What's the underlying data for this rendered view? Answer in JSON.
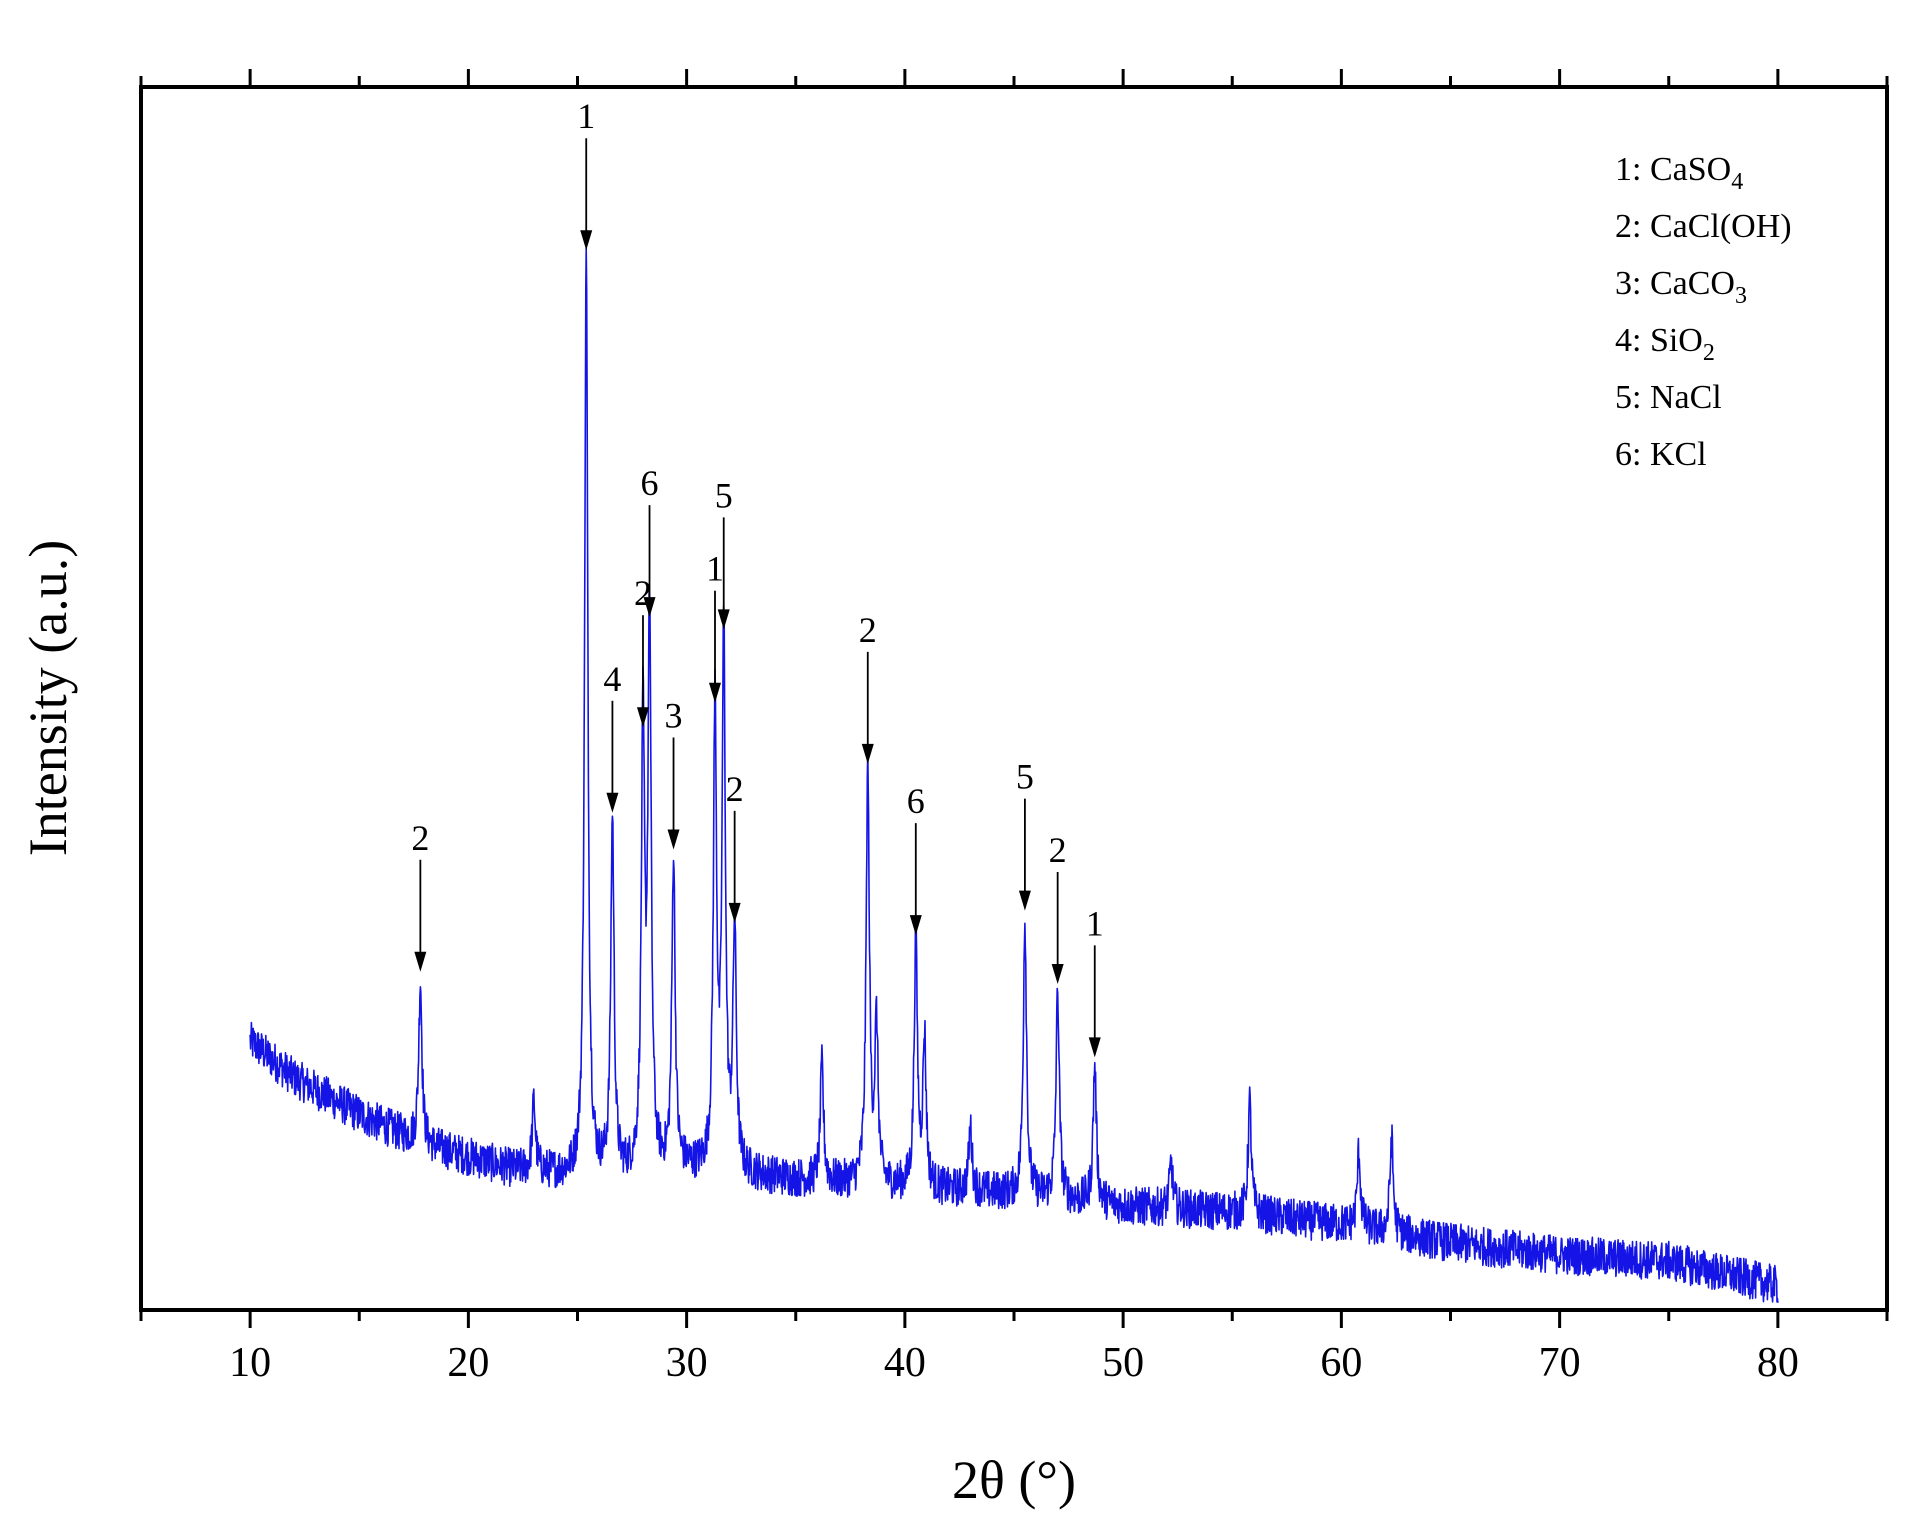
{
  "chart_data": {
    "type": "line",
    "title": "",
    "xlabel": "2θ (°)",
    "ylabel": "Intensity (a.u.)",
    "xlim": [
      5,
      85
    ],
    "ylim": [
      0,
      100
    ],
    "x_ticks": [
      10,
      20,
      30,
      40,
      50,
      60,
      70,
      80
    ],
    "x_tick_labels": [
      "10",
      "20",
      "30",
      "40",
      "50",
      "60",
      "70",
      "80"
    ],
    "y_ticks_shown": false,
    "grid": false,
    "line_color": "#1414e6",
    "x_start": 10,
    "x_end": 80,
    "baseline": [
      [
        10,
        22
      ],
      [
        12,
        19
      ],
      [
        15,
        16
      ],
      [
        18,
        13.5
      ],
      [
        20,
        12.5
      ],
      [
        22,
        11.5
      ],
      [
        25,
        11
      ],
      [
        27,
        11
      ],
      [
        30,
        11.5
      ],
      [
        33,
        11
      ],
      [
        36,
        10.5
      ],
      [
        40,
        10
      ],
      [
        45,
        9.5
      ],
      [
        50,
        8.5
      ],
      [
        55,
        8
      ],
      [
        60,
        7
      ],
      [
        65,
        5.5
      ],
      [
        70,
        4.5
      ],
      [
        75,
        4
      ],
      [
        80,
        2
      ]
    ],
    "peaks": [
      {
        "x": 17.8,
        "y": 27,
        "phase": "2"
      },
      {
        "x": 23.0,
        "y": 17,
        "phase": ""
      },
      {
        "x": 25.4,
        "y": 86,
        "phase": "1"
      },
      {
        "x": 26.6,
        "y": 40,
        "phase": "4"
      },
      {
        "x": 28.0,
        "y": 47,
        "phase": "2"
      },
      {
        "x": 28.3,
        "y": 56,
        "phase": "6"
      },
      {
        "x": 29.4,
        "y": 37,
        "phase": "3"
      },
      {
        "x": 31.3,
        "y": 49,
        "phase": "1"
      },
      {
        "x": 31.7,
        "y": 55,
        "phase": "5"
      },
      {
        "x": 32.2,
        "y": 31,
        "phase": "2"
      },
      {
        "x": 36.2,
        "y": 20,
        "phase": ""
      },
      {
        "x": 38.3,
        "y": 44,
        "phase": "2"
      },
      {
        "x": 38.7,
        "y": 23,
        "phase": ""
      },
      {
        "x": 40.5,
        "y": 30,
        "phase": "6"
      },
      {
        "x": 40.9,
        "y": 22,
        "phase": ""
      },
      {
        "x": 43.0,
        "y": 15,
        "phase": ""
      },
      {
        "x": 45.5,
        "y": 32,
        "phase": "5"
      },
      {
        "x": 47.0,
        "y": 26,
        "phase": "2"
      },
      {
        "x": 48.7,
        "y": 20,
        "phase": "1"
      },
      {
        "x": 52.2,
        "y": 12,
        "phase": ""
      },
      {
        "x": 55.8,
        "y": 17,
        "phase": ""
      },
      {
        "x": 60.8,
        "y": 13,
        "phase": ""
      },
      {
        "x": 62.3,
        "y": 14,
        "phase": ""
      }
    ],
    "annotations": [
      {
        "label": "2",
        "x": 17.8
      },
      {
        "label": "1",
        "x": 25.4
      },
      {
        "label": "4",
        "x": 26.6
      },
      {
        "label": "2",
        "x": 28.0
      },
      {
        "label": "6",
        "x": 28.3
      },
      {
        "label": "3",
        "x": 29.4
      },
      {
        "label": "1",
        "x": 31.3
      },
      {
        "label": "5",
        "x": 31.7
      },
      {
        "label": "2",
        "x": 32.2
      },
      {
        "label": "2",
        "x": 38.3
      },
      {
        "label": "6",
        "x": 40.5
      },
      {
        "label": "5",
        "x": 45.5
      },
      {
        "label": "2",
        "x": 47.0
      },
      {
        "label": "1",
        "x": 48.7
      }
    ],
    "legend": {
      "position": "top-right",
      "entries": [
        {
          "key": "1",
          "name": "CaSO",
          "sub": "4"
        },
        {
          "key": "2",
          "name": "CaCl(OH)",
          "sub": ""
        },
        {
          "key": "3",
          "name": "CaCO",
          "sub": "3"
        },
        {
          "key": "4",
          "name": "SiO",
          "sub": "2"
        },
        {
          "key": "5",
          "name": "NaCl",
          "sub": ""
        },
        {
          "key": "6",
          "name": "KCl",
          "sub": ""
        }
      ]
    }
  }
}
